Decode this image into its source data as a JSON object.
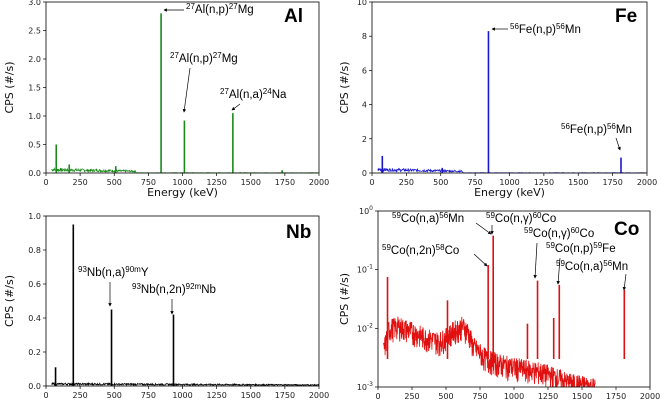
{
  "chart_data": [
    {
      "type": "line",
      "element_label": "Al",
      "xlabel": "Energy (keV)",
      "ylabel": "CPS (#/s)",
      "xlim": [
        0,
        2000
      ],
      "ylim": [
        0,
        3.0
      ],
      "yscale": "linear",
      "xticks": [
        0,
        250,
        500,
        750,
        1000,
        1250,
        1500,
        1750,
        2000
      ],
      "yticks": [
        0.0,
        0.5,
        1.0,
        1.5,
        2.0,
        2.5,
        3.0
      ],
      "ytick_labels": [
        "0.0",
        "0.5",
        "1.0",
        "1.5",
        "2.0",
        "2.5",
        "3.0"
      ],
      "color": "#1a8a1a",
      "background": {
        "start": 40,
        "end": 660,
        "level": 0.06
      },
      "peaks": [
        {
          "x": 75,
          "y": 0.5
        },
        {
          "x": 170,
          "y": 0.15
        },
        {
          "x": 511,
          "y": 0.12
        },
        {
          "x": 843,
          "y": 2.8
        },
        {
          "x": 1014,
          "y": 0.92
        },
        {
          "x": 1369,
          "y": 1.05
        },
        {
          "x": 1730,
          "y": 0.05
        }
      ],
      "annotations": [
        {
          "parts": [
            [
              "sup",
              "27"
            ],
            [
              "",
              "Al(n,p)"
            ],
            [
              "sup",
              "27"
            ],
            [
              "",
              "Mg"
            ]
          ],
          "x": 843,
          "y": 2.8
        },
        {
          "parts": [
            [
              "sup",
              "27"
            ],
            [
              "",
              "Al(n,p)"
            ],
            [
              "sup",
              "27"
            ],
            [
              "",
              "Mg"
            ]
          ],
          "x": 1014,
          "y": 0.92
        },
        {
          "parts": [
            [
              "sup",
              "27"
            ],
            [
              "",
              "Al(n,a)"
            ],
            [
              "sup",
              "24"
            ],
            [
              "",
              "Na"
            ]
          ],
          "x": 1369,
          "y": 1.05
        }
      ]
    },
    {
      "type": "line",
      "element_label": "Fe",
      "xlabel": "Energy (keV)",
      "ylabel": "CPS (#/s)",
      "xlim": [
        0,
        2000
      ],
      "ylim": [
        0,
        10
      ],
      "yscale": "linear",
      "xticks": [
        0,
        250,
        500,
        750,
        1000,
        1250,
        1500,
        1750,
        2000
      ],
      "yticks": [
        0,
        2,
        4,
        6,
        8,
        10
      ],
      "ytick_labels": [
        "0",
        "2",
        "4",
        "6",
        "8",
        "10"
      ],
      "color": "#1a1acc",
      "background": {
        "start": 40,
        "end": 660,
        "level": 0.2
      },
      "peaks": [
        {
          "x": 75,
          "y": 1.0
        },
        {
          "x": 511,
          "y": 0.3
        },
        {
          "x": 847,
          "y": 8.3
        },
        {
          "x": 1811,
          "y": 0.9
        }
      ],
      "annotations": [
        {
          "parts": [
            [
              "sup",
              "56"
            ],
            [
              "",
              "Fe(n,p)"
            ],
            [
              "sup",
              "56"
            ],
            [
              "",
              "Mn"
            ]
          ],
          "x": 847,
          "y": 8.3
        },
        {
          "parts": [
            [
              "sup",
              "56"
            ],
            [
              "",
              "Fe(n,p)"
            ],
            [
              "sup",
              "56"
            ],
            [
              "",
              "Mn"
            ]
          ],
          "x": 1811,
          "y": 0.9
        }
      ]
    },
    {
      "type": "line",
      "element_label": "Nb",
      "xlabel": "",
      "ylabel": "CPS (#/s)",
      "xlim": [
        0,
        2000
      ],
      "ylim": [
        0,
        1.0
      ],
      "yscale": "linear",
      "xticks": [
        0,
        250,
        500,
        750,
        1000,
        1250,
        1500,
        1750,
        2000
      ],
      "yticks": [
        0.0,
        0.2,
        0.4,
        0.6,
        0.8,
        1.0
      ],
      "ytick_labels": [
        "0.0",
        "0.2",
        "0.4",
        "0.6",
        "0.8",
        "1.0"
      ],
      "color": "#000000",
      "background": {
        "start": 40,
        "end": 2000,
        "level": 0.012
      },
      "peaks": [
        {
          "x": 70,
          "y": 0.11
        },
        {
          "x": 200,
          "y": 0.95
        },
        {
          "x": 480,
          "y": 0.45
        },
        {
          "x": 934,
          "y": 0.42
        }
      ],
      "annotations": [
        {
          "parts": [
            [
              "sup",
              "93"
            ],
            [
              "",
              "Nb(n,a)"
            ],
            [
              "sup",
              "90m"
            ],
            [
              "",
              "Y"
            ]
          ],
          "x": 480,
          "y": 0.45
        },
        {
          "parts": [
            [
              "sup",
              "93"
            ],
            [
              "",
              "Nb(n,2n)"
            ],
            [
              "sup",
              "92m"
            ],
            [
              "",
              "Nb"
            ]
          ],
          "x": 934,
          "y": 0.42
        }
      ]
    },
    {
      "type": "line",
      "element_label": "Co",
      "xlabel": "",
      "ylabel": "CPS (#/s)",
      "xlim": [
        0,
        2000
      ],
      "ylim": [
        0.001,
        1
      ],
      "yscale": "log",
      "xticks": [
        0,
        250,
        500,
        750,
        1000,
        1250,
        1500,
        1750,
        2000
      ],
      "yticks": [
        0.001,
        0.01,
        0.1,
        1
      ],
      "ytick_labels": [
        "10",
        "10",
        "10",
        "10"
      ],
      "ytick_exponents": [
        "-3",
        "-2",
        "-1",
        "0"
      ],
      "color": "#e01010",
      "background_points": [
        [
          40,
          0.004
        ],
        [
          80,
          0.01
        ],
        [
          150,
          0.011
        ],
        [
          250,
          0.009
        ],
        [
          350,
          0.007
        ],
        [
          450,
          0.006
        ],
        [
          500,
          0.007
        ],
        [
          550,
          0.009
        ],
        [
          620,
          0.011
        ],
        [
          660,
          0.009
        ],
        [
          700,
          0.005
        ],
        [
          800,
          0.003
        ],
        [
          900,
          0.0025
        ],
        [
          1000,
          0.0022
        ],
        [
          1100,
          0.002
        ],
        [
          1200,
          0.0018
        ],
        [
          1300,
          0.0015
        ],
        [
          1400,
          0.0012
        ],
        [
          1500,
          0.0011
        ],
        [
          1600,
          0.001
        ]
      ],
      "peaks": [
        {
          "x": 70,
          "y": 0.075
        },
        {
          "x": 511,
          "y": 0.03
        },
        {
          "x": 810,
          "y": 0.12
        },
        {
          "x": 847,
          "y": 0.38
        },
        {
          "x": 1099,
          "y": 0.012
        },
        {
          "x": 1173,
          "y": 0.065
        },
        {
          "x": 1292,
          "y": 0.015
        },
        {
          "x": 1333,
          "y": 0.055
        },
        {
          "x": 1811,
          "y": 0.045
        }
      ],
      "annotations": [
        {
          "parts": [
            [
              "sup",
              "59"
            ],
            [
              "",
              "Co(n,a)"
            ],
            [
              "sup",
              "56"
            ],
            [
              "",
              "Mn"
            ]
          ]
        },
        {
          "parts": [
            [
              "sup",
              "59"
            ],
            [
              "",
              "Co(n,γ)"
            ],
            [
              "sup",
              "60"
            ],
            [
              "",
              "Co"
            ]
          ]
        },
        {
          "parts": [
            [
              "sup",
              "59"
            ],
            [
              "",
              "Co(n,2n)"
            ],
            [
              "sup",
              "58"
            ],
            [
              "",
              "Co"
            ]
          ]
        },
        {
          "parts": [
            [
              "sup",
              "59"
            ],
            [
              "",
              "Co(n,γ)"
            ],
            [
              "sup",
              "60"
            ],
            [
              "",
              "Co"
            ]
          ]
        },
        {
          "parts": [
            [
              "sup",
              "59"
            ],
            [
              "",
              "Co(n,p)"
            ],
            [
              "sup",
              "59"
            ],
            [
              "",
              "Fe"
            ]
          ]
        },
        {
          "parts": [
            [
              "sup",
              "59"
            ],
            [
              "",
              "Co(n,a)"
            ],
            [
              "sup",
              "56"
            ],
            [
              "",
              "Mn"
            ]
          ]
        }
      ]
    }
  ]
}
